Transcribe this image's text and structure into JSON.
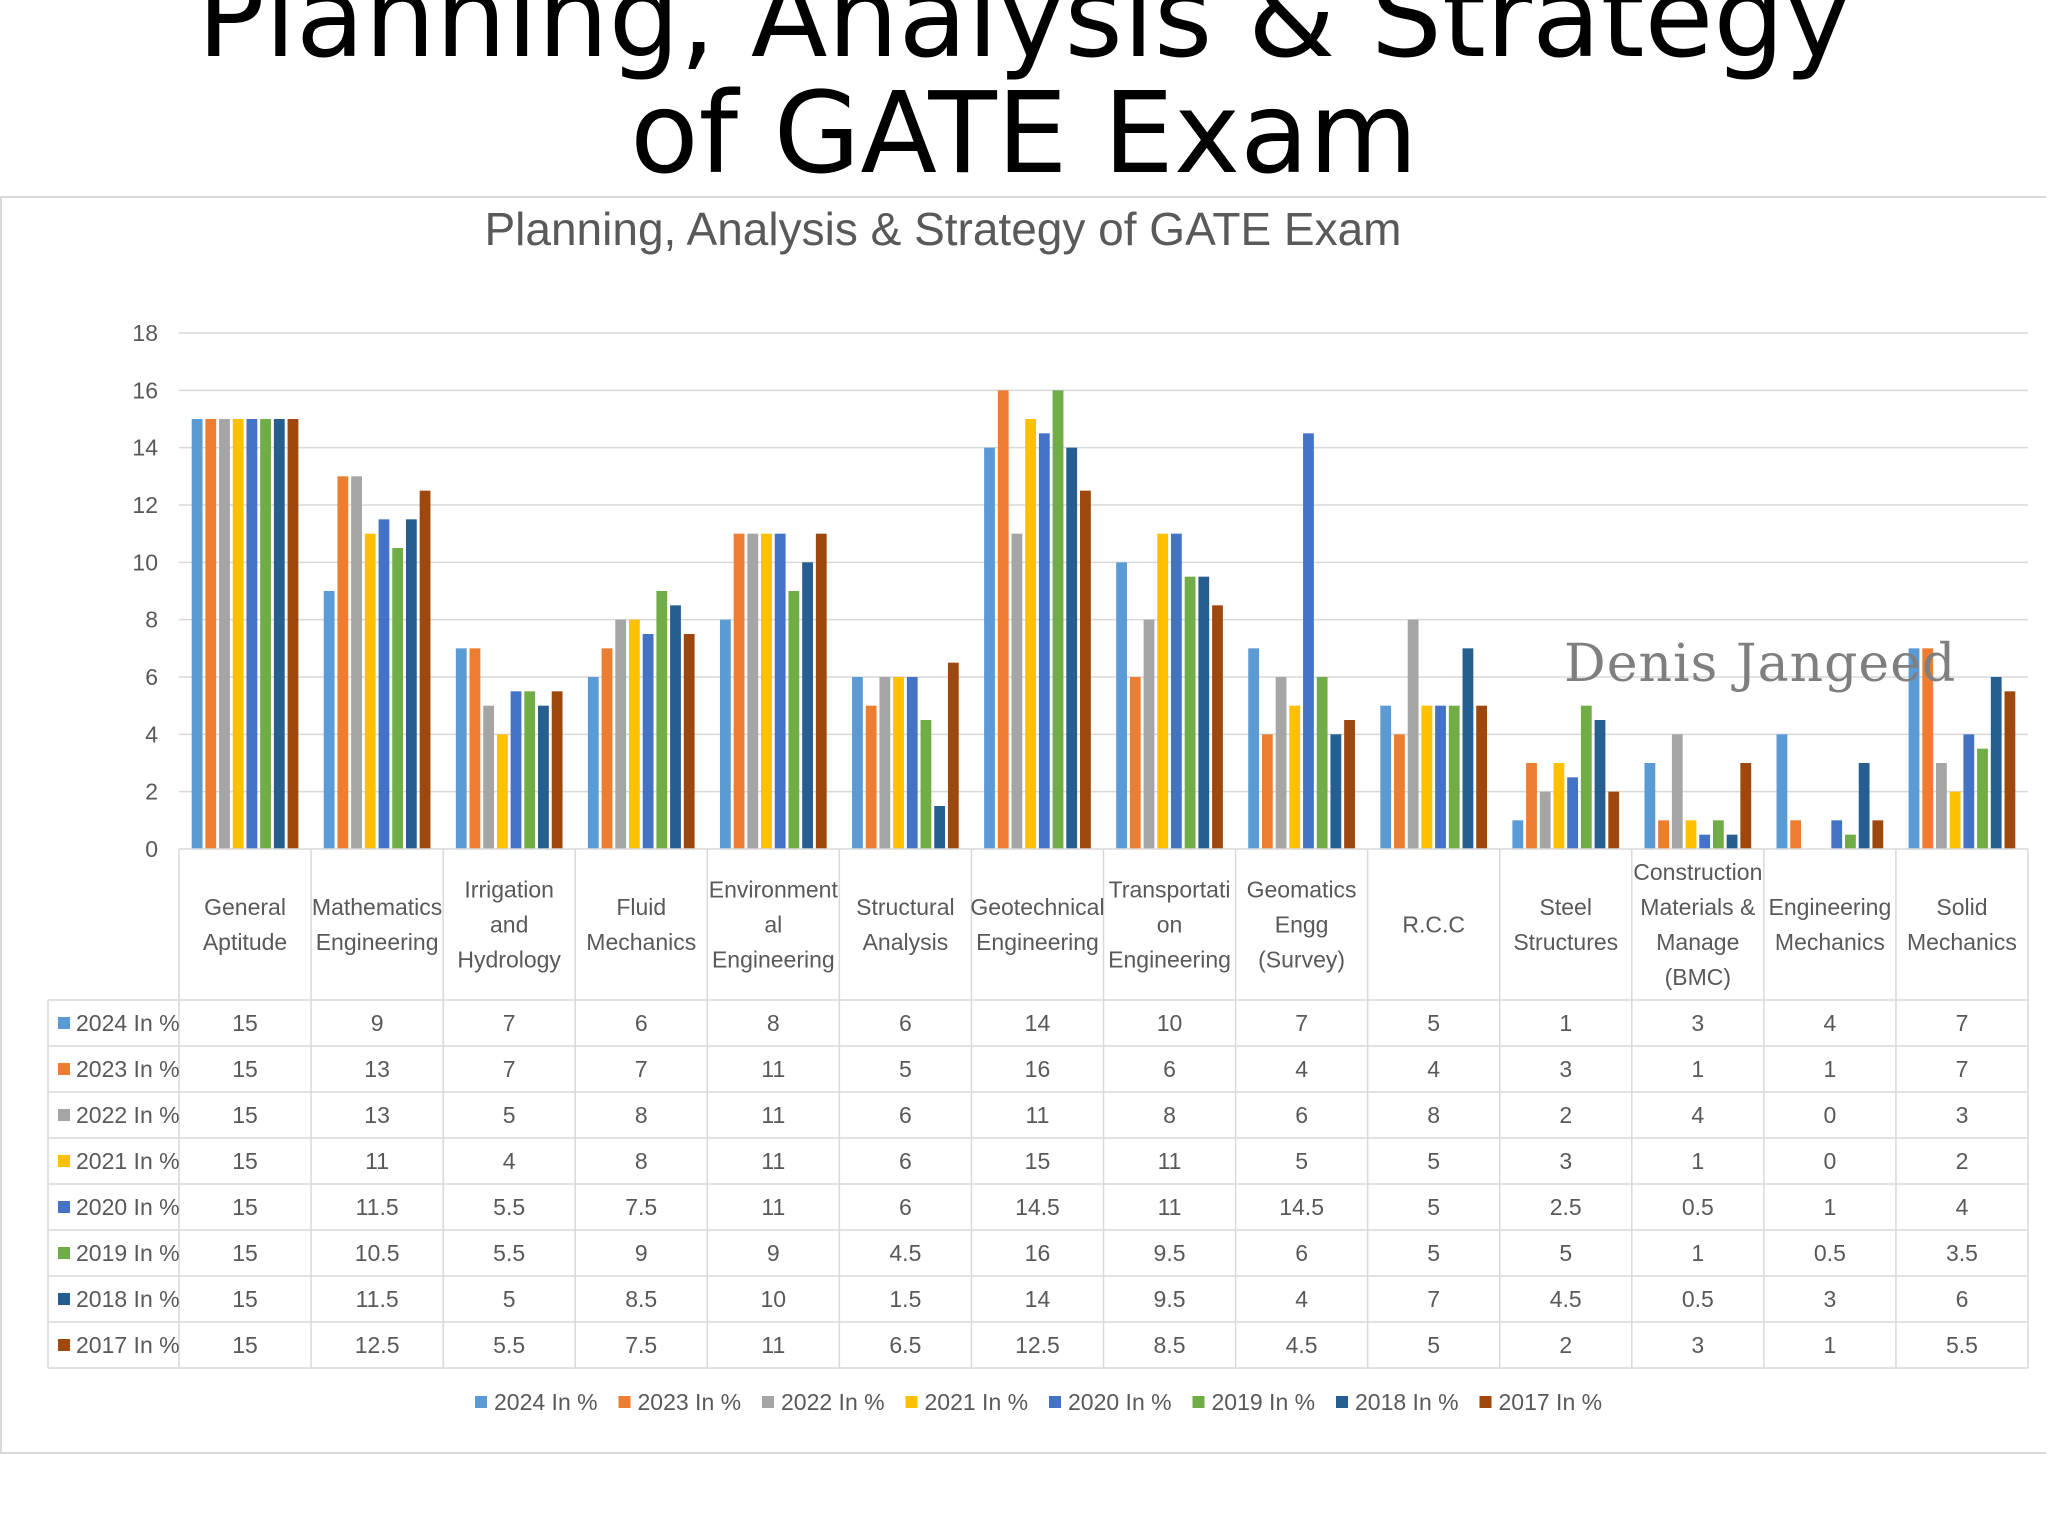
{
  "slide": {
    "title_line1": "Planning, Analysis & Strategy",
    "title_line2": "of GATE Exam"
  },
  "watermark": "Denis Jangeed",
  "chart_data": {
    "type": "bar",
    "title": "Planning, Analysis & Strategy of GATE Exam",
    "xlabel": "",
    "ylabel": "",
    "ylim": [
      0,
      18
    ],
    "yticks": [
      0,
      2,
      4,
      6,
      8,
      10,
      12,
      14,
      16,
      18
    ],
    "grid": true,
    "legend_position": "bottom",
    "data_table": true,
    "categories": [
      [
        "General",
        "Aptitude"
      ],
      [
        "Mathematics",
        "Engineering"
      ],
      [
        "Irrigation",
        "and",
        "Hydrology"
      ],
      [
        "Fluid",
        "Mechanics"
      ],
      [
        "Environment",
        "al",
        "Engineering"
      ],
      [
        "Structural",
        "Analysis"
      ],
      [
        "Geotechnical",
        "Engineering"
      ],
      [
        "Transportati",
        "on",
        "Engineering"
      ],
      [
        "Geomatics",
        "Engg",
        "(Survey)"
      ],
      [
        "R.C.C"
      ],
      [
        "Steel",
        "Structures"
      ],
      [
        "Construction",
        "Materials &",
        "Manage",
        "(BMC)"
      ],
      [
        "Engineering",
        "Mechanics"
      ],
      [
        "Solid",
        "Mechanics"
      ]
    ],
    "series": [
      {
        "name": "2024 In %",
        "color": "#5b9bd5",
        "values": [
          15,
          9,
          7,
          6,
          8,
          6,
          14,
          10,
          7,
          5,
          1,
          3,
          4,
          7
        ]
      },
      {
        "name": "2023 In %",
        "color": "#ed7d31",
        "values": [
          15,
          13,
          7,
          7,
          11,
          5,
          16,
          6,
          4,
          4,
          3,
          1,
          1,
          7
        ]
      },
      {
        "name": "2022 In %",
        "color": "#a5a5a5",
        "values": [
          15,
          13,
          5,
          8,
          11,
          6,
          11,
          8,
          6,
          8,
          2,
          4,
          0,
          3
        ]
      },
      {
        "name": "2021 In %",
        "color": "#ffc000",
        "values": [
          15,
          11,
          4,
          8,
          11,
          6,
          15,
          11,
          5,
          5,
          3,
          1,
          0,
          2
        ]
      },
      {
        "name": "2020 In %",
        "color": "#4472c4",
        "values": [
          15,
          11.5,
          5.5,
          7.5,
          11,
          6,
          14.5,
          11,
          14.5,
          5,
          2.5,
          0.5,
          1,
          4
        ]
      },
      {
        "name": "2019 In %",
        "color": "#70ad47",
        "values": [
          15,
          10.5,
          5.5,
          9,
          9,
          4.5,
          16,
          9.5,
          6,
          5,
          5,
          1,
          0.5,
          3.5
        ]
      },
      {
        "name": "2018 In %",
        "color": "#255e91",
        "values": [
          15,
          11.5,
          5,
          8.5,
          10,
          1.5,
          14,
          9.5,
          4,
          7,
          4.5,
          0.5,
          3,
          6
        ]
      },
      {
        "name": "2017 In %",
        "color": "#9e480e",
        "values": [
          15,
          12.5,
          5.5,
          7.5,
          11,
          6.5,
          12.5,
          8.5,
          4.5,
          5,
          2,
          3,
          1,
          5.5
        ]
      }
    ]
  }
}
